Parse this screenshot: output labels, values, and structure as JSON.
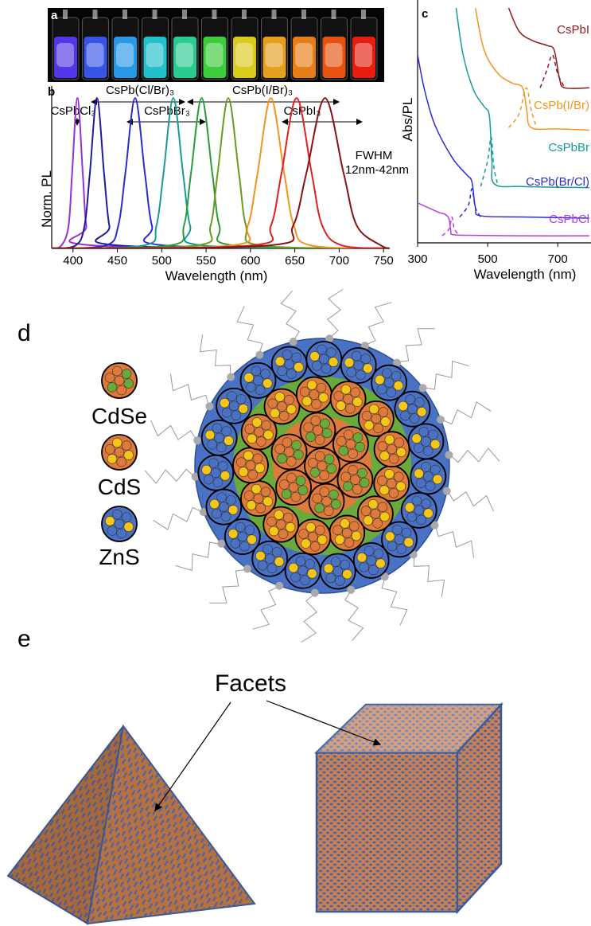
{
  "panel_labels": [
    "a",
    "b",
    "c",
    "d",
    "e"
  ],
  "chart_data": [
    {
      "type": "line",
      "xlabel": "Wavelength (nm)",
      "ylabel": "Norm. PL",
      "xlim": [
        376,
        757
      ],
      "ylim": [
        0,
        1.08
      ],
      "xticks": [
        400,
        450,
        500,
        550,
        600,
        650,
        700,
        750
      ],
      "annotations": [
        "CsPb(Cl/Br)₃",
        "CsPb(I/Br)₃",
        "CsPbCl₃",
        "CsPbBr₃",
        "CsPbI₃",
        "FWHM",
        "12nm-42nm"
      ],
      "series": [
        {
          "color": "#9b30d0",
          "x": [
            376,
            387,
            395,
            399,
            405,
            411,
            415,
            423,
            757
          ],
          "values": [
            0,
            0.02,
            0.15,
            0.5,
            1,
            0.5,
            0.15,
            0.02,
            0
          ]
        },
        {
          "color": "#1c1c9a",
          "x": [
            376,
            403,
            413,
            419,
            427,
            435,
            441,
            451,
            757
          ],
          "values": [
            0,
            0.02,
            0.15,
            0.5,
            1,
            0.5,
            0.15,
            0.02,
            0
          ]
        },
        {
          "color": "#2b2bd0",
          "x": [
            376,
            437,
            451,
            459,
            470,
            481,
            489,
            503,
            757
          ],
          "values": [
            0,
            0.02,
            0.15,
            0.5,
            1,
            0.5,
            0.15,
            0.02,
            0
          ]
        },
        {
          "color": "#1a9a9a",
          "x": [
            376,
            480,
            494,
            502,
            513,
            524,
            532,
            546,
            757
          ],
          "values": [
            0,
            0.02,
            0.15,
            0.5,
            1,
            0.5,
            0.15,
            0.02,
            0
          ]
        },
        {
          "color": "#2a9a3a",
          "x": [
            376,
            509,
            525,
            533,
            545,
            557,
            565,
            581,
            757
          ],
          "values": [
            0,
            0.02,
            0.15,
            0.5,
            1,
            0.5,
            0.15,
            0.02,
            0
          ]
        },
        {
          "color": "#6a9a20",
          "x": [
            376,
            539,
            555,
            563,
            575,
            587,
            595,
            611,
            757
          ],
          "values": [
            0,
            0.02,
            0.15,
            0.5,
            1,
            0.5,
            0.15,
            0.02,
            0
          ]
        },
        {
          "color": "#f29520",
          "x": [
            376,
            578,
            597,
            608,
            623,
            638,
            649,
            668,
            757
          ],
          "values": [
            0,
            0.02,
            0.15,
            0.5,
            1,
            0.5,
            0.15,
            0.02,
            0
          ]
        },
        {
          "color": "#e02020",
          "x": [
            376,
            601,
            623,
            635,
            652,
            669,
            681,
            703,
            757
          ],
          "values": [
            0,
            0.02,
            0.15,
            0.5,
            1,
            0.5,
            0.15,
            0.02,
            0
          ]
        },
        {
          "color": "#8b1010",
          "x": [
            376,
            621,
            648,
            663,
            684,
            705,
            720,
            747,
            757
          ],
          "values": [
            0,
            0.02,
            0.15,
            0.5,
            1,
            0.5,
            0.15,
            0.02,
            0
          ]
        }
      ]
    },
    {
      "type": "line",
      "xlabel": "Wavelength (nm)",
      "ylabel": "Abs/PL",
      "xlim": [
        300,
        795
      ],
      "ylim": [
        0,
        10
      ],
      "xticks": [
        300,
        500,
        700
      ],
      "series": [
        {
          "name": "CsPbI",
          "color": "#8b1a1a",
          "x": [
            560,
            590,
            630,
            670,
            690,
            705,
            720,
            790
          ],
          "values": [
            10,
            9.0,
            8.6,
            8.4,
            8.2,
            7.0,
            6.6,
            6.6
          ]
        },
        {
          "color": "#8b1a1a",
          "dash": true,
          "x": [
            650,
            670,
            685,
            700,
            720
          ],
          "values": [
            6.6,
            7.4,
            8.0,
            7.2,
            6.6
          ]
        },
        {
          "name": "CsPb(I/Br)",
          "color": "#f29520",
          "x": [
            465,
            490,
            530,
            570,
            600,
            612,
            625,
            700,
            790
          ],
          "values": [
            10,
            8.2,
            7.2,
            6.8,
            6.6,
            5.6,
            4.9,
            4.85,
            4.8
          ]
        },
        {
          "color": "#f29520",
          "dash": true,
          "x": [
            560,
            590,
            610,
            625,
            640
          ],
          "values": [
            4.9,
            5.5,
            6.6,
            5.6,
            4.9
          ]
        },
        {
          "name": "CsPbBr",
          "color": "#1a9a9a",
          "x": [
            410,
            430,
            460,
            490,
            505,
            512,
            520,
            600,
            790
          ],
          "values": [
            10,
            8,
            6.5,
            5.8,
            5.4,
            3.5,
            2.5,
            2.4,
            2.35
          ]
        },
        {
          "color": "#1a9a9a",
          "dash": true,
          "x": [
            480,
            500,
            510,
            518,
            530
          ],
          "values": [
            2.4,
            3.5,
            4.5,
            3.2,
            2.4
          ]
        },
        {
          "name": "CsPb(Br/Cl)",
          "color": "#2b2bd0",
          "x": [
            300,
            320,
            350,
            400,
            440,
            455,
            465,
            480,
            600,
            790
          ],
          "values": [
            8,
            6.5,
            5.0,
            3.6,
            2.9,
            2.6,
            1.5,
            1.15,
            1.1,
            1.05
          ]
        },
        {
          "color": "#2b2bd0",
          "dash": true,
          "x": [
            420,
            445,
            455,
            465,
            480
          ],
          "values": [
            1.1,
            1.6,
            2.3,
            1.5,
            1.1
          ]
        },
        {
          "name": "CsPbCl",
          "color": "#b040e0",
          "x": [
            300,
            330,
            360,
            380,
            390,
            395,
            400,
            450,
            600,
            790
          ],
          "values": [
            1.7,
            1.5,
            1.3,
            1.2,
            1.0,
            0.5,
            0.35,
            0.32,
            0.3,
            0.3
          ]
        },
        {
          "color": "#b040e0",
          "dash": true,
          "x": [
            370,
            390,
            398,
            405,
            420
          ],
          "values": [
            0.3,
            0.6,
            1.1,
            0.6,
            0.3
          ]
        }
      ]
    }
  ],
  "legend_d": [
    "CdSe",
    "CdS",
    "ZnS"
  ],
  "facets_label": "Facets"
}
